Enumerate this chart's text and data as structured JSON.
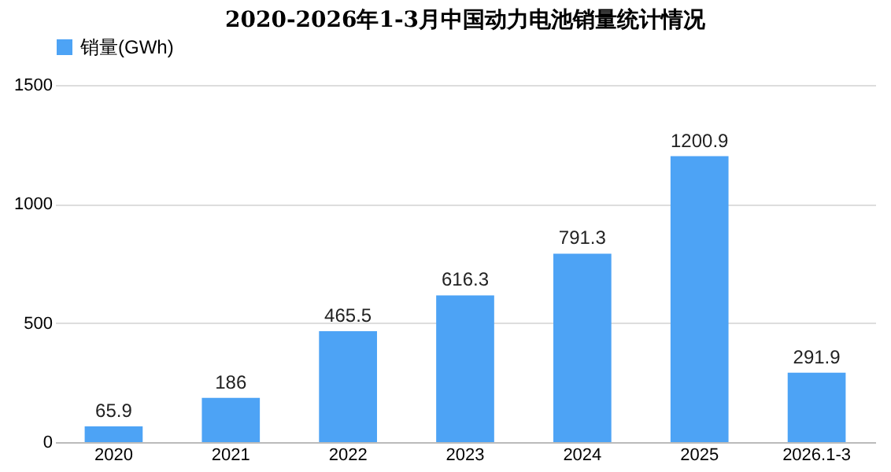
{
  "chart_data": {
    "type": "bar",
    "title": "2020-2026年1-3月中国动力电池销量统计情况",
    "categories": [
      "2020",
      "2021",
      "2022",
      "2023",
      "2024",
      "2025",
      "2026.1-3"
    ],
    "series": [
      {
        "name": "销量(GWh)",
        "color": "#4da3f5",
        "values": [
          65.9,
          186,
          465.5,
          616.3,
          791.3,
          1200.9,
          291.9
        ]
      }
    ],
    "ylim": [
      0,
      1500
    ],
    "yticks": [
      0,
      500,
      1000,
      1500
    ],
    "grid": "y",
    "legend": "top",
    "data_labels": true
  }
}
